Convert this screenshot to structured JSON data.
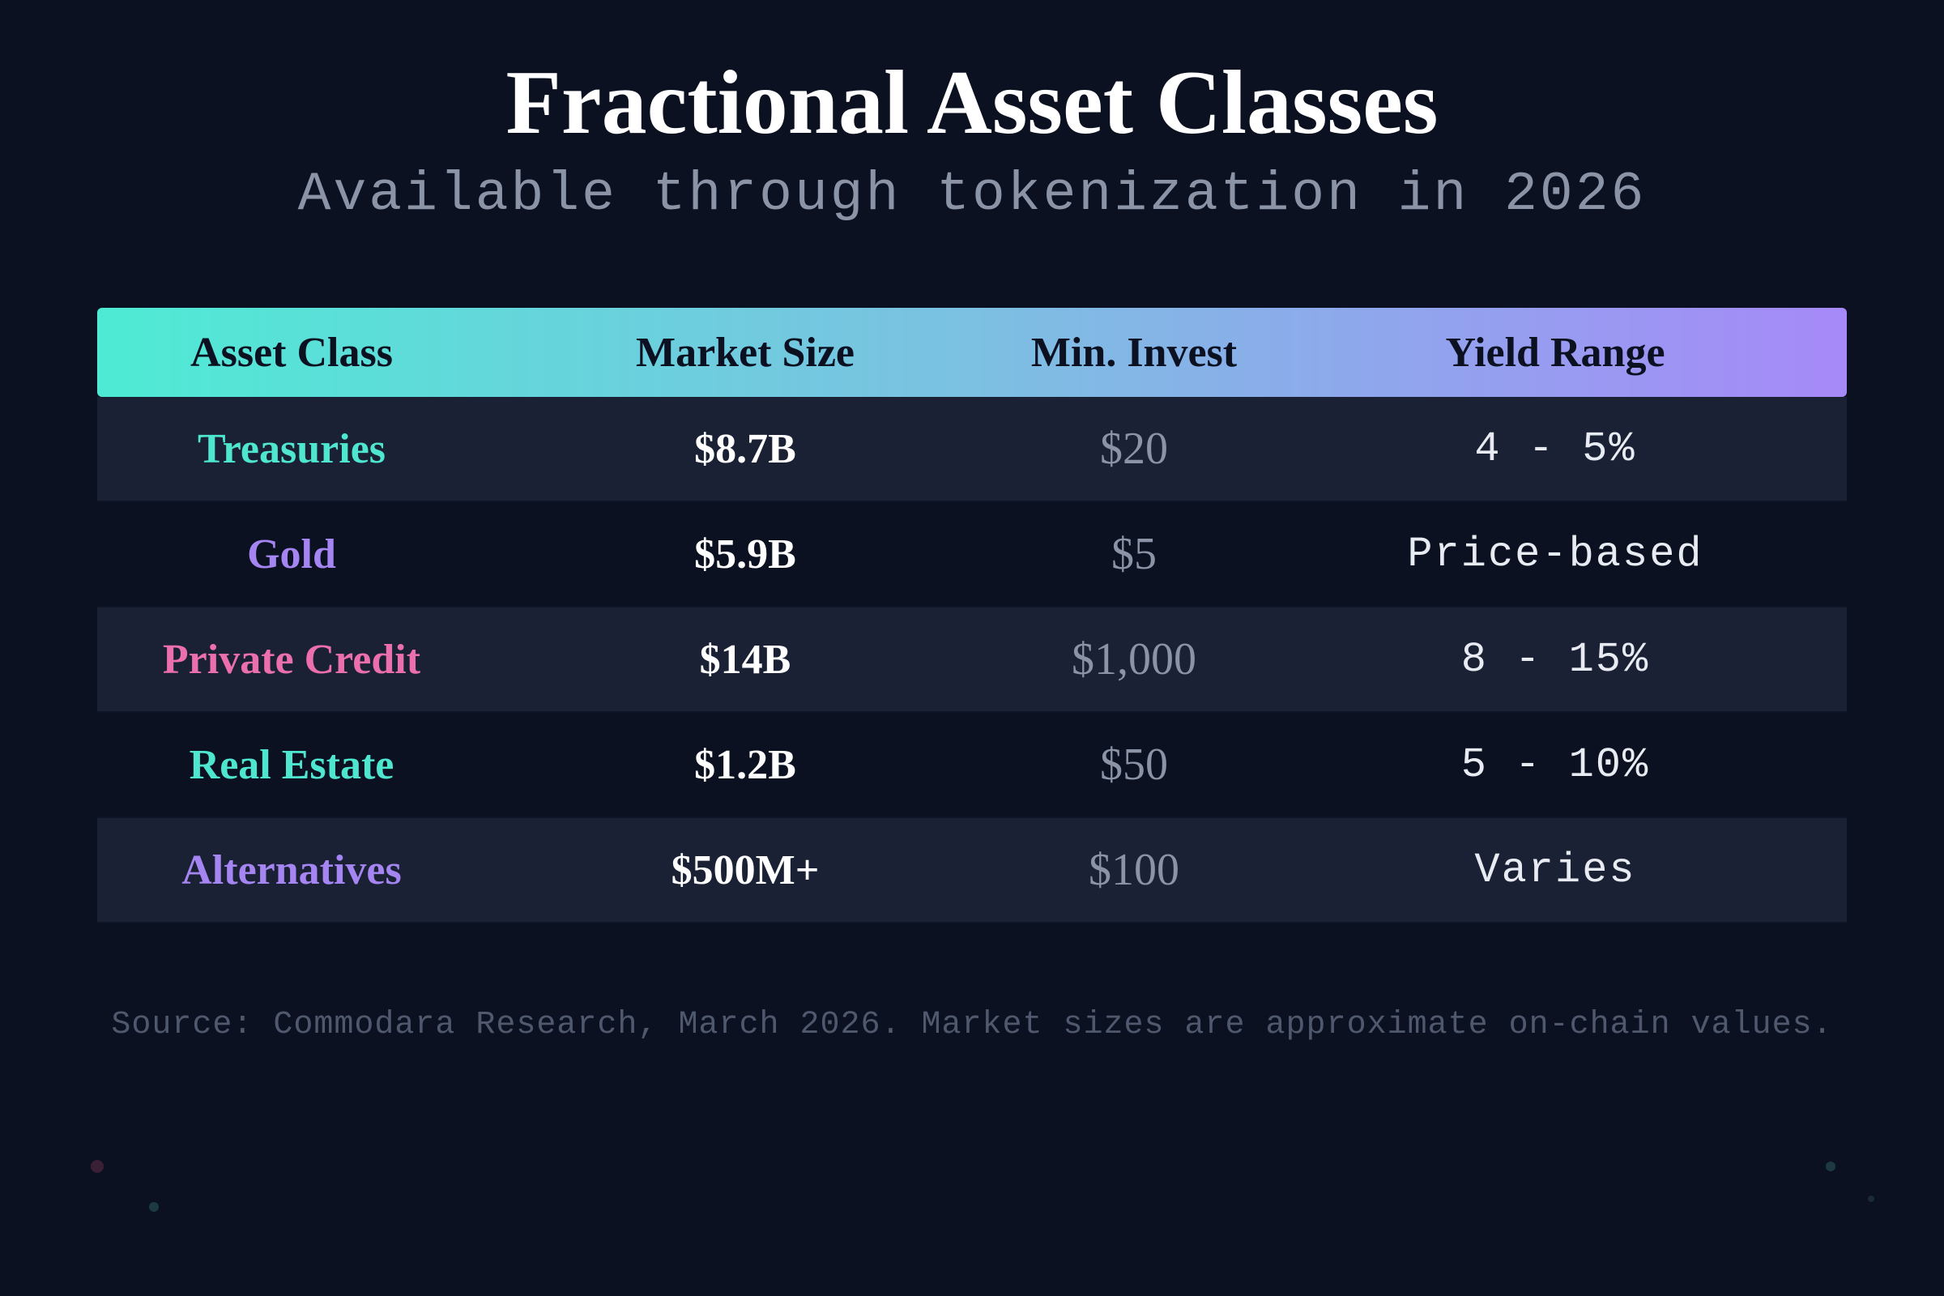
{
  "header": {
    "title": "Fractional Asset Classes",
    "subtitle": "Available through tokenization in 2026"
  },
  "table": {
    "header_gradient": [
      "#4eebd4",
      "#7cc0e2",
      "#a689f8"
    ],
    "columns": [
      "Asset Class",
      "Market Size",
      "Min. Invest",
      "Yield Range"
    ],
    "rows": [
      {
        "asset": "Treasuries",
        "asset_color": "#4ee6cf",
        "size": "$8.7B",
        "min": "$20",
        "yield": "4 - 5%"
      },
      {
        "asset": "Gold",
        "asset_color": "#a585f2",
        "size": "$5.9B",
        "min": "$5",
        "yield": "Price-based"
      },
      {
        "asset": "Private Credit",
        "asset_color": "#ec6fad",
        "size": "$14B",
        "min": "$1,000",
        "yield": "8 - 15%"
      },
      {
        "asset": "Real Estate",
        "asset_color": "#4ee6cf",
        "size": "$1.2B",
        "min": "$50",
        "yield": "5 - 10%"
      },
      {
        "asset": "Alternatives",
        "asset_color": "#a585f2",
        "size": "$500M+",
        "min": "$100",
        "yield": "Varies"
      }
    ]
  },
  "footer": {
    "source": "Source: Commodara Research, March 2026. Market sizes are approximate on-chain values."
  },
  "colors": {
    "background": "#0b1121",
    "row_alt": "#1a2134",
    "muted": "#8b93a6"
  }
}
